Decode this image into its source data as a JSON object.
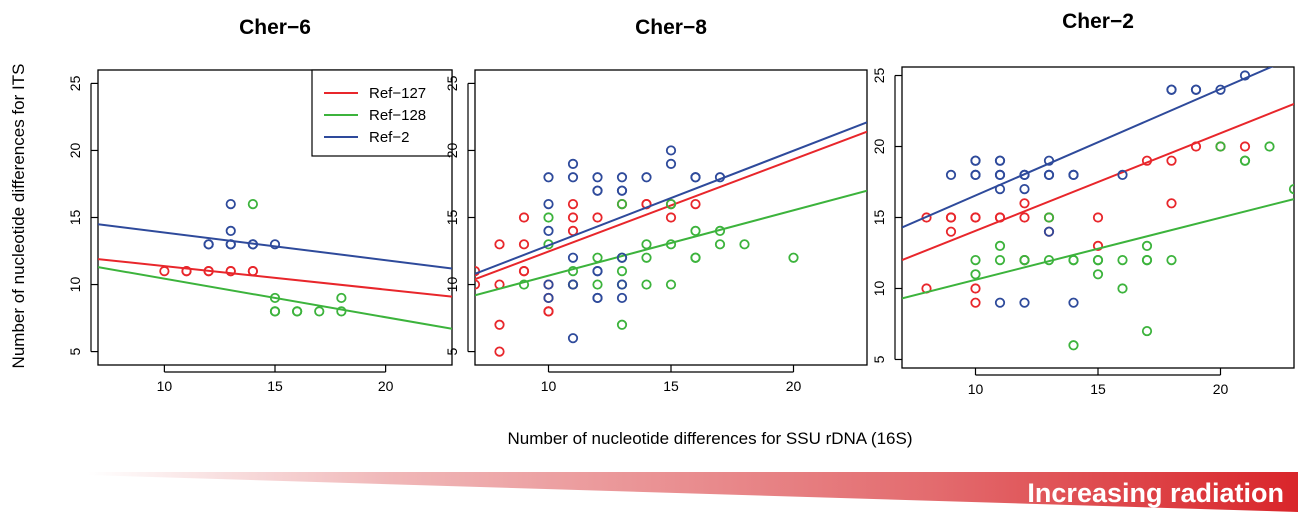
{
  "figure": {
    "y_axis_label": "Number of nucleotide differences for ITS",
    "x_axis_label": "Number of nucleotide differences for SSU rDNA (16S)",
    "banner_text": "Increasing radiation",
    "banner_color": "#d9252a"
  },
  "legend": {
    "placement": "top-right of first panel",
    "entries": [
      {
        "label": "Ref−127",
        "color": "#e8262b"
      },
      {
        "label": "Ref−128",
        "color": "#3cb33c"
      },
      {
        "label": "Ref−2",
        "color": "#2e4a9b"
      }
    ]
  },
  "chart_data": [
    {
      "type": "scatter",
      "title": "Cher−6",
      "xlim": [
        7,
        23
      ],
      "ylim": [
        4,
        26
      ],
      "xticks": [
        10,
        15,
        20
      ],
      "yticks": [
        5,
        10,
        15,
        20,
        25
      ],
      "grid": false,
      "series": [
        {
          "name": "Ref−127",
          "color": "#e8262b",
          "points": [
            [
              10,
              11
            ],
            [
              11,
              11
            ],
            [
              11,
              11
            ],
            [
              12,
              11
            ],
            [
              12,
              11
            ],
            [
              13,
              11
            ],
            [
              13,
              11
            ],
            [
              14,
              11
            ],
            [
              14,
              11
            ]
          ],
          "fit": [
            [
              7,
              11.9
            ],
            [
              23,
              9.1
            ]
          ]
        },
        {
          "name": "Ref−128",
          "color": "#3cb33c",
          "points": [
            [
              14,
              16
            ],
            [
              15,
              9
            ],
            [
              15,
              8
            ],
            [
              15,
              8
            ],
            [
              16,
              8
            ],
            [
              16,
              8
            ],
            [
              17,
              8
            ],
            [
              18,
              9
            ],
            [
              18,
              8
            ]
          ],
          "fit": [
            [
              7,
              11.3
            ],
            [
              23,
              6.7
            ]
          ]
        },
        {
          "name": "Ref−2",
          "color": "#2e4a9b",
          "points": [
            [
              12,
              13
            ],
            [
              12,
              13
            ],
            [
              13,
              16
            ],
            [
              13,
              14
            ],
            [
              13,
              13
            ],
            [
              13,
              13
            ],
            [
              14,
              13
            ],
            [
              14,
              13
            ],
            [
              15,
              13
            ]
          ],
          "fit": [
            [
              7,
              14.5
            ],
            [
              23,
              11.2
            ]
          ]
        }
      ]
    },
    {
      "type": "scatter",
      "title": "Cher−8",
      "xlim": [
        7,
        23
      ],
      "ylim": [
        4,
        26
      ],
      "xticks": [
        10,
        15,
        20
      ],
      "yticks": [
        5,
        10,
        15,
        20,
        25
      ],
      "grid": false,
      "series": [
        {
          "name": "Ref−127",
          "color": "#e8262b",
          "points": [
            [
              7,
              11
            ],
            [
              7,
              10
            ],
            [
              8,
              13
            ],
            [
              8,
              10
            ],
            [
              8,
              7
            ],
            [
              8,
              5
            ],
            [
              9,
              15
            ],
            [
              9,
              13
            ],
            [
              9,
              11
            ],
            [
              9,
              11
            ],
            [
              10,
              10
            ],
            [
              10,
              9
            ],
            [
              10,
              8
            ],
            [
              10,
              8
            ],
            [
              11,
              16
            ],
            [
              11,
              15
            ],
            [
              11,
              14
            ],
            [
              11,
              10
            ],
            [
              12,
              15
            ],
            [
              13,
              16
            ],
            [
              14,
              16
            ],
            [
              14,
              16
            ],
            [
              15,
              15
            ],
            [
              15,
              16
            ],
            [
              16,
              16
            ]
          ],
          "fit": [
            [
              7,
              10.4
            ],
            [
              23,
              21.4
            ]
          ]
        },
        {
          "name": "Ref−128",
          "color": "#3cb33c",
          "points": [
            [
              9,
              10
            ],
            [
              10,
              15
            ],
            [
              10,
              13
            ],
            [
              11,
              11
            ],
            [
              11,
              10
            ],
            [
              12,
              12
            ],
            [
              12,
              10
            ],
            [
              13,
              16
            ],
            [
              13,
              12
            ],
            [
              13,
              11
            ],
            [
              13,
              10
            ],
            [
              13,
              7
            ],
            [
              14,
              13
            ],
            [
              14,
              12
            ],
            [
              14,
              10
            ],
            [
              15,
              16
            ],
            [
              15,
              13
            ],
            [
              15,
              10
            ],
            [
              16,
              14
            ],
            [
              16,
              12
            ],
            [
              16,
              12
            ],
            [
              17,
              14
            ],
            [
              17,
              13
            ],
            [
              18,
              13
            ],
            [
              20,
              12
            ]
          ],
          "fit": [
            [
              7,
              9.2
            ],
            [
              23,
              17.0
            ]
          ]
        },
        {
          "name": "Ref−2",
          "color": "#2e4a9b",
          "points": [
            [
              10,
              18
            ],
            [
              10,
              16
            ],
            [
              10,
              14
            ],
            [
              10,
              10
            ],
            [
              10,
              9
            ],
            [
              11,
              19
            ],
            [
              11,
              18
            ],
            [
              11,
              12
            ],
            [
              11,
              10
            ],
            [
              11,
              6
            ],
            [
              12,
              18
            ],
            [
              12,
              17
            ],
            [
              12,
              17
            ],
            [
              12,
              11
            ],
            [
              12,
              11
            ],
            [
              12,
              9
            ],
            [
              12,
              9
            ],
            [
              13,
              18
            ],
            [
              13,
              17
            ],
            [
              13,
              17
            ],
            [
              13,
              12
            ],
            [
              13,
              10
            ],
            [
              13,
              9
            ],
            [
              14,
              18
            ],
            [
              15,
              20
            ],
            [
              15,
              19
            ],
            [
              16,
              18
            ],
            [
              16,
              18
            ],
            [
              17,
              18
            ]
          ],
          "fit": [
            [
              7,
              10.8
            ],
            [
              23,
              22.1
            ]
          ]
        }
      ]
    },
    {
      "type": "scatter",
      "title": "Cher−2",
      "xlim": [
        7,
        23
      ],
      "ylim": [
        4.4,
        25.6
      ],
      "xticks": [
        10,
        15,
        20
      ],
      "yticks": [
        5,
        10,
        15,
        20,
        25
      ],
      "grid": false,
      "series": [
        {
          "name": "Ref−127",
          "color": "#e8262b",
          "points": [
            [
              8,
              15
            ],
            [
              8,
              10
            ],
            [
              9,
              15
            ],
            [
              9,
              15
            ],
            [
              9,
              14
            ],
            [
              10,
              15
            ],
            [
              10,
              15
            ],
            [
              10,
              10
            ],
            [
              10,
              9
            ],
            [
              11,
              15
            ],
            [
              11,
              15
            ],
            [
              12,
              16
            ],
            [
              12,
              15
            ],
            [
              12,
              12
            ],
            [
              13,
              15
            ],
            [
              13,
              14
            ],
            [
              15,
              15
            ],
            [
              15,
              13
            ],
            [
              17,
              19
            ],
            [
              18,
              19
            ],
            [
              18,
              16
            ],
            [
              19,
              20
            ],
            [
              20,
              20
            ],
            [
              21,
              20
            ]
          ],
          "fit": [
            [
              7,
              12.0
            ],
            [
              23,
              23.0
            ]
          ]
        },
        {
          "name": "Ref−128",
          "color": "#3cb33c",
          "points": [
            [
              10,
              12
            ],
            [
              10,
              11
            ],
            [
              11,
              13
            ],
            [
              11,
              12
            ],
            [
              12,
              12
            ],
            [
              12,
              12
            ],
            [
              13,
              15
            ],
            [
              13,
              12
            ],
            [
              14,
              12
            ],
            [
              14,
              12
            ],
            [
              14,
              6
            ],
            [
              15,
              12
            ],
            [
              15,
              12
            ],
            [
              15,
              11
            ],
            [
              16,
              12
            ],
            [
              16,
              10
            ],
            [
              17,
              13
            ],
            [
              17,
              12
            ],
            [
              17,
              12
            ],
            [
              17,
              7
            ],
            [
              18,
              12
            ],
            [
              20,
              20
            ],
            [
              21,
              19
            ],
            [
              21,
              19
            ],
            [
              22,
              20
            ],
            [
              23,
              17
            ]
          ],
          "fit": [
            [
              7,
              9.3
            ],
            [
              23,
              16.3
            ]
          ]
        },
        {
          "name": "Ref−2",
          "color": "#2e4a9b",
          "points": [
            [
              9,
              18
            ],
            [
              10,
              19
            ],
            [
              10,
              19
            ],
            [
              10,
              18
            ],
            [
              10,
              18
            ],
            [
              11,
              19
            ],
            [
              11,
              19
            ],
            [
              11,
              18
            ],
            [
              11,
              18
            ],
            [
              11,
              17
            ],
            [
              11,
              9
            ],
            [
              12,
              18
            ],
            [
              12,
              18
            ],
            [
              12,
              17
            ],
            [
              12,
              9
            ],
            [
              13,
              19
            ],
            [
              13,
              18
            ],
            [
              13,
              18
            ],
            [
              13,
              14
            ],
            [
              14,
              18
            ],
            [
              14,
              18
            ],
            [
              14,
              9
            ],
            [
              16,
              18
            ],
            [
              18,
              24
            ],
            [
              18,
              24
            ],
            [
              19,
              24
            ],
            [
              19,
              24
            ],
            [
              20,
              24
            ],
            [
              21,
              25
            ]
          ],
          "fit": [
            [
              7,
              14.3
            ],
            [
              23,
              26.3
            ]
          ]
        }
      ]
    }
  ]
}
